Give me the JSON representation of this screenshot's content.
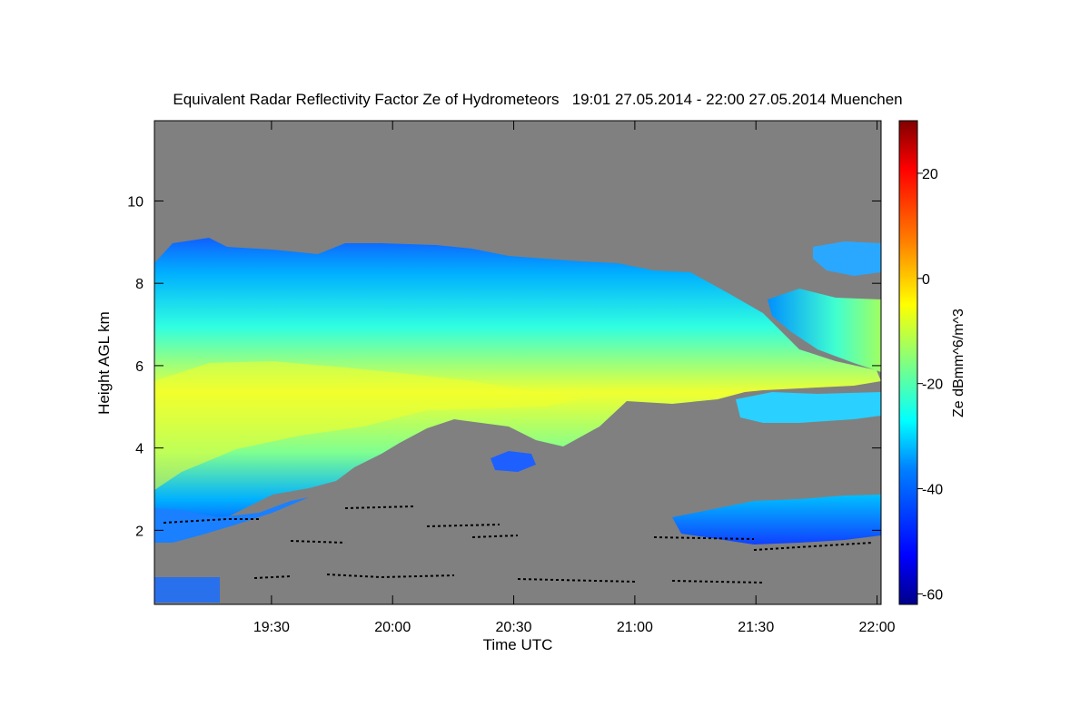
{
  "chart_data": {
    "type": "heatmap",
    "title": "Equivalent Radar Reflectivity Factor Ze of Hydrometeors   19:01 27.05.2014 - 22:00 27.05.2014 Muenchen",
    "xlabel": "Time UTC",
    "ylabel": "Height AGL km",
    "colorbar_label": "Ze dBmm^6/m^3",
    "x_ticks": [
      "19:30",
      "20:00",
      "20:30",
      "21:00",
      "21:30",
      "22:00"
    ],
    "y_ticks": [
      "2",
      "4",
      "6",
      "8",
      "10"
    ],
    "colorbar_ticks": [
      "20",
      "0",
      "-20",
      "-40",
      "-60"
    ],
    "xlim": [
      "19:01",
      "22:01"
    ],
    "ylim": [
      0.2,
      11.95
    ],
    "clim": [
      -62,
      30
    ],
    "background_color": "#808080",
    "features": [
      {
        "name": "upper ice cloud layer",
        "ze_peak": -5,
        "t_start": "19:01",
        "t_end": "22:00"
      },
      {
        "name": "upper right detached layer",
        "ze_peak": -30,
        "t_start": "21:30",
        "t_end": "22:00"
      },
      {
        "name": "lower boundary echoes",
        "ze_peak": -40,
        "t_start": "21:15",
        "t_end": "22:00"
      },
      {
        "name": "near-ground clutter",
        "ze_peak": -45,
        "t_start": "19:01",
        "t_end": "19:20"
      }
    ]
  }
}
